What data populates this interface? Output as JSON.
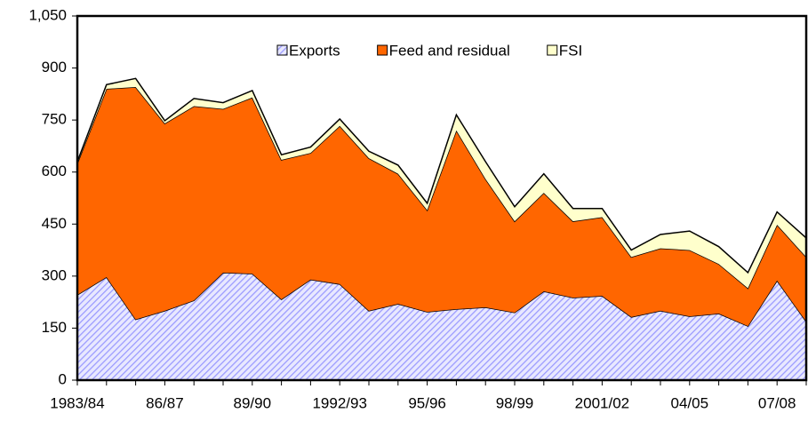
{
  "chart_data": {
    "type": "stacked_area",
    "categories": [
      "1983/84",
      null,
      null,
      "86/87",
      null,
      null,
      "89/90",
      null,
      null,
      "1992/93",
      null,
      null,
      "95/96",
      null,
      null,
      "98/99",
      null,
      null,
      "2001/02",
      null,
      null,
      "04/05",
      null,
      null,
      "07/08",
      null
    ],
    "series": [
      {
        "name": "Exports",
        "color": "#9999ff",
        "hatch": true,
        "values": [
          246,
          297,
          175,
          200,
          230,
          310,
          307,
          233,
          290,
          277,
          200,
          220,
          197,
          205,
          210,
          195,
          256,
          238,
          243,
          182,
          200,
          184,
          192,
          156,
          287,
          169
        ]
      },
      {
        "name": "Feed and residual",
        "color": "#ff6600",
        "values": [
          379,
          543,
          670,
          540,
          560,
          472,
          508,
          402,
          365,
          456,
          440,
          375,
          293,
          515,
          370,
          263,
          284,
          220,
          227,
          173,
          180,
          191,
          143,
          109,
          161,
          186
        ]
      },
      {
        "name": "FSI",
        "color": "#ffffcc",
        "values": [
          5,
          12,
          25,
          8,
          22,
          18,
          20,
          15,
          17,
          20,
          20,
          25,
          20,
          45,
          50,
          42,
          55,
          37,
          25,
          20,
          40,
          55,
          50,
          45,
          37,
          55
        ]
      }
    ],
    "ylim": [
      0,
      1050
    ],
    "yticks": [
      0,
      150,
      300,
      450,
      600,
      750,
      900,
      {
        "value": 1050,
        "label": "1,050"
      }
    ],
    "legend": "top"
  }
}
